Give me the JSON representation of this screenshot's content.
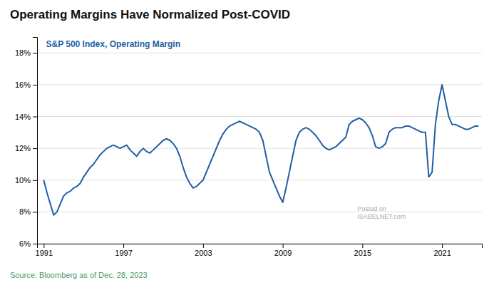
{
  "chart_data": {
    "type": "line",
    "title": "Operating Margins Have Normalized Post-COVID",
    "subtitle": "S&P 500 Index, Operating Margin",
    "annotations": [
      "Source: Bloomberg as of Dec. 28, 2023",
      "Posted on\nISABELNET.com"
    ],
    "color": "#1f5fa6",
    "grid": true,
    "xlim": [
      1990.5,
      2024
    ],
    "xticks": [
      1991,
      1997,
      2003,
      2009,
      2015,
      2021
    ],
    "ylim": [
      6,
      19
    ],
    "yticks": [
      {
        "value": 6,
        "label": "6%"
      },
      {
        "value": 8,
        "label": "8%"
      },
      {
        "value": 10,
        "label": "10%"
      },
      {
        "value": 12,
        "label": "12%"
      },
      {
        "value": 14,
        "label": "14%"
      },
      {
        "value": 16,
        "label": "16%"
      },
      {
        "value": 18,
        "label": "18%"
      }
    ],
    "x": [
      1991.0,
      1991.25,
      1991.5,
      1991.75,
      1992.0,
      1992.25,
      1992.5,
      1992.75,
      1993.0,
      1993.25,
      1993.5,
      1993.75,
      1994.0,
      1994.25,
      1994.5,
      1994.75,
      1995.0,
      1995.25,
      1995.5,
      1995.75,
      1996.0,
      1996.25,
      1996.5,
      1996.75,
      1997.0,
      1997.25,
      1997.5,
      1997.75,
      1998.0,
      1998.25,
      1998.5,
      1998.75,
      1999.0,
      1999.25,
      1999.5,
      1999.75,
      2000.0,
      2000.25,
      2000.5,
      2000.75,
      2001.0,
      2001.25,
      2001.5,
      2001.75,
      2002.0,
      2002.25,
      2002.5,
      2002.75,
      2003.0,
      2003.25,
      2003.5,
      2003.75,
      2004.0,
      2004.25,
      2004.5,
      2004.75,
      2005.0,
      2005.25,
      2005.5,
      2005.75,
      2006.0,
      2006.25,
      2006.5,
      2006.75,
      2007.0,
      2007.25,
      2007.5,
      2007.75,
      2008.0,
      2008.25,
      2008.5,
      2008.75,
      2009.0,
      2009.25,
      2009.5,
      2009.75,
      2010.0,
      2010.25,
      2010.5,
      2010.75,
      2011.0,
      2011.25,
      2011.5,
      2011.75,
      2012.0,
      2012.25,
      2012.5,
      2012.75,
      2013.0,
      2013.25,
      2013.5,
      2013.75,
      2014.0,
      2014.25,
      2014.5,
      2014.75,
      2015.0,
      2015.25,
      2015.5,
      2015.75,
      2016.0,
      2016.25,
      2016.5,
      2016.75,
      2017.0,
      2017.25,
      2017.5,
      2017.75,
      2018.0,
      2018.25,
      2018.5,
      2018.75,
      2019.0,
      2019.25,
      2019.5,
      2019.75,
      2020.0,
      2020.25,
      2020.5,
      2020.75,
      2021.0,
      2021.25,
      2021.5,
      2021.75,
      2022.0,
      2022.25,
      2022.5,
      2022.75,
      2023.0,
      2023.25,
      2023.5,
      2023.75
    ],
    "values": [
      10.0,
      9.2,
      8.5,
      7.8,
      8.0,
      8.5,
      9.0,
      9.2,
      9.3,
      9.5,
      9.6,
      9.8,
      10.2,
      10.5,
      10.8,
      11.0,
      11.3,
      11.6,
      11.8,
      12.0,
      12.1,
      12.2,
      12.1,
      12.0,
      12.1,
      12.2,
      11.9,
      11.7,
      11.5,
      11.8,
      12.0,
      11.8,
      11.7,
      11.9,
      12.1,
      12.3,
      12.5,
      12.6,
      12.5,
      12.3,
      12.0,
      11.5,
      10.8,
      10.2,
      9.8,
      9.5,
      9.6,
      9.8,
      10.0,
      10.5,
      11.0,
      11.5,
      12.0,
      12.5,
      12.9,
      13.2,
      13.4,
      13.5,
      13.6,
      13.7,
      13.6,
      13.5,
      13.4,
      13.3,
      13.2,
      13.0,
      12.5,
      11.5,
      10.5,
      10.0,
      9.5,
      9.0,
      8.6,
      9.5,
      10.5,
      11.5,
      12.5,
      13.0,
      13.2,
      13.3,
      13.2,
      13.0,
      12.8,
      12.5,
      12.2,
      12.0,
      11.9,
      12.0,
      12.1,
      12.3,
      12.5,
      12.7,
      13.5,
      13.7,
      13.8,
      13.9,
      13.8,
      13.6,
      13.3,
      12.8,
      12.1,
      12.0,
      12.1,
      12.3,
      13.0,
      13.2,
      13.3,
      13.3,
      13.3,
      13.4,
      13.4,
      13.3,
      13.2,
      13.1,
      13.0,
      13.0,
      10.2,
      10.5,
      13.5,
      15.0,
      16.0,
      15.0,
      14.0,
      13.5,
      13.5,
      13.4,
      13.3,
      13.2,
      13.2,
      13.3,
      13.4,
      13.4
    ]
  }
}
